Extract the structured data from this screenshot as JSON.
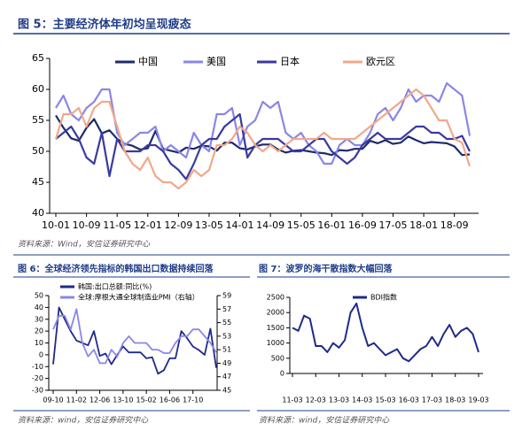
{
  "chart_data": [
    {
      "type": "line",
      "title": "图 5：主要经济体年初均呈现疲态",
      "categories": [
        "10-01",
        null,
        null,
        null,
        "10-09",
        null,
        null,
        null,
        "11-05",
        null,
        null,
        null,
        "12-01",
        null,
        null,
        null,
        "12-09",
        null,
        null,
        null,
        "13-05",
        null,
        null,
        null,
        "14-01",
        null,
        null,
        null,
        "14-09",
        null,
        null,
        null,
        "15-05",
        null,
        null,
        null,
        "16-01",
        null,
        null,
        null,
        "16-09",
        null,
        null,
        null,
        "17-05",
        null,
        null,
        null,
        "18-01",
        null,
        null,
        null,
        "18-09",
        null,
        null
      ],
      "ylim": [
        40,
        65
      ],
      "yticks": [
        40,
        45,
        50,
        55,
        60,
        65
      ],
      "legend": "top",
      "series": [
        {
          "name": "中国",
          "color": "#1f2a6e",
          "values": [
            55.8,
            53.8,
            52.1,
            51.7,
            53.8,
            55.2,
            52.9,
            53.4,
            52.0,
            51.2,
            50.9,
            50.3,
            50.5,
            53.3,
            50.4,
            50.1,
            49.8,
            50.6,
            50.4,
            50.9,
            50.8,
            50.1,
            51.4,
            51.4,
            50.5,
            50.3,
            50.8,
            51.1,
            51.1,
            50.3,
            49.8,
            50.1,
            50.2,
            50.0,
            49.8,
            49.7,
            49.4,
            50.2,
            50.1,
            50.4,
            50.4,
            51.7,
            51.3,
            51.8,
            51.2,
            51.4,
            52.4,
            51.8,
            51.3,
            51.5,
            51.4,
            51.3,
            50.8,
            49.4,
            49.5
          ]
        },
        {
          "name": "美国",
          "color": "#8a87e6",
          "values": [
            57,
            59,
            56,
            55,
            57,
            58,
            60,
            60,
            53,
            51,
            52,
            53,
            53,
            54,
            50,
            51,
            50,
            49,
            53,
            51,
            50,
            56,
            56,
            57,
            51,
            54,
            55,
            58,
            57,
            58,
            53,
            52,
            53,
            51,
            50,
            48,
            48,
            51,
            52,
            51,
            51,
            53,
            56,
            57,
            55,
            57,
            60,
            58,
            59,
            59,
            58,
            61,
            60,
            59,
            52.5
          ]
        },
        {
          "name": "日本",
          "color": "#3a3aa0",
          "values": [
            52,
            53,
            54,
            52,
            49,
            48,
            53,
            46,
            52,
            50,
            50,
            50,
            51,
            51,
            50,
            48,
            47,
            45.5,
            48,
            51,
            52,
            52,
            54,
            55,
            56,
            49,
            51,
            52,
            52,
            52,
            51,
            50,
            50,
            51,
            52,
            52,
            50,
            49,
            48,
            49,
            51,
            52,
            53,
            52,
            52,
            52,
            53,
            54,
            54,
            53,
            53,
            52,
            52,
            52.5,
            50
          ]
        },
        {
          "name": "欧元区",
          "color": "#f2a88a",
          "values": [
            52,
            56,
            56,
            57,
            54,
            57,
            58,
            58,
            54,
            50,
            48,
            47,
            49,
            46,
            45,
            45,
            44,
            45,
            47,
            46,
            47,
            51,
            51,
            52,
            54,
            53,
            51,
            50,
            51,
            50,
            51,
            52,
            52,
            52,
            52,
            53,
            52,
            52,
            52,
            52,
            53,
            54,
            55,
            56,
            57,
            58,
            59,
            60,
            59,
            57,
            55,
            55,
            52,
            51.4,
            47.6
          ]
        }
      ],
      "source": "资料来源：Wind，安信证券研究中心"
    },
    {
      "type": "line",
      "title": "图 6：全球经济领先指标的韩国出口数据持续回落",
      "categories": [
        "09-10",
        null,
        null,
        null,
        "11-02",
        null,
        null,
        null,
        "12-06",
        null,
        null,
        null,
        "13-10",
        null,
        null,
        null,
        "15-02",
        null,
        null,
        null,
        "16-06",
        null,
        null,
        null,
        "17-10",
        null,
        null,
        null,
        null
      ],
      "ylim": [
        -30,
        50
      ],
      "yticks": [
        -30,
        -20,
        -10,
        0,
        10,
        20,
        30,
        40,
        50
      ],
      "y2lim": [
        45,
        59
      ],
      "y2ticks": [
        45,
        47,
        49,
        51,
        53,
        55,
        57,
        59
      ],
      "legend": "top-left",
      "series": [
        {
          "name": "韩国:出口总额:同比(%)",
          "color": "#1f2a8a",
          "values": [
            -8,
            40,
            30,
            20,
            12,
            10,
            8,
            20,
            -1,
            1,
            -8,
            0,
            7,
            2,
            2,
            2,
            -3,
            -2,
            -16,
            -13,
            -3,
            -3,
            20,
            14,
            7,
            4,
            0,
            22,
            -11
          ]
        },
        {
          "name": "全球:摩根大通全球制造业PMI（右轴）",
          "color": "#8a87e6",
          "axis": "y2",
          "values": [
            54,
            56,
            56,
            54,
            57,
            52,
            50,
            51,
            49,
            49,
            51,
            50,
            52,
            53,
            52,
            52,
            52,
            51,
            51,
            50.5,
            50.5,
            52,
            53,
            53,
            54,
            54,
            53,
            52,
            50.6
          ]
        }
      ],
      "source": "资料来源：wind，安信证券研究中心"
    },
    {
      "type": "line",
      "title": "图 7：波罗的海干散指数大幅回落",
      "categories": [
        "11-03",
        null,
        null,
        null,
        "12-03",
        null,
        null,
        null,
        "13-03",
        null,
        null,
        null,
        "14-03",
        null,
        null,
        null,
        "15-03",
        null,
        null,
        null,
        "16-03",
        null,
        null,
        null,
        "17-03",
        null,
        null,
        null,
        "18-03",
        null,
        null,
        null,
        "19-03"
      ],
      "ylim": [
        0,
        2500
      ],
      "yticks": [
        0,
        500,
        1000,
        1500,
        2000,
        2500
      ],
      "legend": "top",
      "series": [
        {
          "name": "BDI指数",
          "color": "#1f2a8a",
          "values": [
            1500,
            1400,
            1900,
            1800,
            900,
            900,
            700,
            1000,
            850,
            1100,
            2000,
            2300,
            1500,
            900,
            1000,
            800,
            600,
            700,
            800,
            500,
            400,
            600,
            800,
            900,
            1200,
            900,
            1300,
            1600,
            1200,
            1400,
            1500,
            1300,
            700
          ]
        }
      ],
      "source": "资料来源：wind，安信证券研究中心"
    }
  ]
}
